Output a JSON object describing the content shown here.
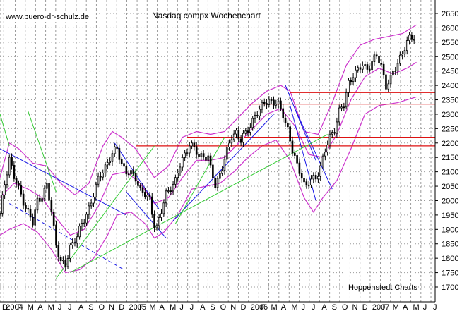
{
  "chart_data": {
    "type": "candlestick",
    "title": "Nasdaq compx Wochenchart",
    "watermark": "www.buero-dr-schulz.de",
    "credit": "Hoppenstedt Charts",
    "ylim": [
      1700,
      2650
    ],
    "y_ticks": [
      1700,
      1750,
      1800,
      1850,
      1900,
      1950,
      2000,
      2050,
      2100,
      2150,
      2200,
      2250,
      2300,
      2350,
      2400,
      2450,
      2500,
      2550,
      2600,
      2650
    ],
    "x_labels": [
      {
        "label": "D",
        "i": 0
      },
      {
        "label": "2004",
        "i": 1.6
      },
      {
        "label": "F",
        "i": 6.5
      },
      {
        "label": "M",
        "i": 10.8
      },
      {
        "label": "A",
        "i": 15.2
      },
      {
        "label": "M",
        "i": 19.5
      },
      {
        "label": "J",
        "i": 23.8
      },
      {
        "label": "J",
        "i": 28.1
      },
      {
        "label": "A",
        "i": 32.6
      },
      {
        "label": "S",
        "i": 36.9
      },
      {
        "label": "O",
        "i": 41.2
      },
      {
        "label": "N",
        "i": 45.6
      },
      {
        "label": "D",
        "i": 49.9
      },
      {
        "label": "2005",
        "i": 54.2
      },
      {
        "label": "F",
        "i": 58.6
      },
      {
        "label": "M",
        "i": 62.9
      },
      {
        "label": "A",
        "i": 67.2
      },
      {
        "label": "M",
        "i": 71.6
      },
      {
        "label": "J",
        "i": 75.9
      },
      {
        "label": "J",
        "i": 80.2
      },
      {
        "label": "A",
        "i": 84.6
      },
      {
        "label": "S",
        "i": 88.9
      },
      {
        "label": "O",
        "i": 93.2
      },
      {
        "label": "N",
        "i": 97.6
      },
      {
        "label": "D",
        "i": 101.9
      },
      {
        "label": "2006",
        "i": 106.2
      },
      {
        "label": "F",
        "i": 110.6
      },
      {
        "label": "M",
        "i": 114.9
      },
      {
        "label": "A",
        "i": 119.2
      },
      {
        "label": "M",
        "i": 123.6
      },
      {
        "label": "J",
        "i": 127.9
      },
      {
        "label": "J",
        "i": 132.2
      },
      {
        "label": "A",
        "i": 136.6
      },
      {
        "label": "S",
        "i": 140.9
      },
      {
        "label": "O",
        "i": 145.2
      },
      {
        "label": "N",
        "i": 149.6
      },
      {
        "label": "D",
        "i": 153.9
      },
      {
        "label": "2007",
        "i": 158.2
      },
      {
        "label": "F",
        "i": 162.6
      },
      {
        "label": "M",
        "i": 166.9
      },
      {
        "label": "A",
        "i": 171.2
      },
      {
        "label": "M",
        "i": 175.6
      },
      {
        "label": "J",
        "i": 179.9
      },
      {
        "label": "J",
        "i": 184.2
      }
    ],
    "x_extent": [
      0,
      186
    ],
    "close_anchors": [
      [
        0,
        1950
      ],
      [
        2,
        2060
      ],
      [
        4,
        2150
      ],
      [
        6,
        2080
      ],
      [
        8,
        2040
      ],
      [
        10,
        2000
      ],
      [
        12,
        1960
      ],
      [
        14,
        1920
      ],
      [
        16,
        2000
      ],
      [
        18,
        2020
      ],
      [
        20,
        2050
      ],
      [
        22,
        1960
      ],
      [
        24,
        1850
      ],
      [
        26,
        1790
      ],
      [
        28,
        1770
      ],
      [
        30,
        1840
      ],
      [
        33,
        1880
      ],
      [
        36,
        1930
      ],
      [
        39,
        2000
      ],
      [
        42,
        2070
      ],
      [
        45,
        2120
      ],
      [
        48,
        2160
      ],
      [
        50,
        2180
      ],
      [
        52,
        2130
      ],
      [
        54,
        2100
      ],
      [
        56,
        2090
      ],
      [
        58,
        2080
      ],
      [
        60,
        2040
      ],
      [
        62,
        2020
      ],
      [
        64,
        2000
      ],
      [
        66,
        1920
      ],
      [
        67,
        1910
      ],
      [
        69,
        1960
      ],
      [
        71,
        2020
      ],
      [
        73,
        2050
      ],
      [
        75,
        2070
      ],
      [
        77,
        2120
      ],
      [
        79,
        2160
      ],
      [
        81,
        2200
      ],
      [
        83,
        2180
      ],
      [
        85,
        2150
      ],
      [
        87,
        2160
      ],
      [
        89,
        2150
      ],
      [
        90,
        2110
      ],
      [
        92,
        2050
      ],
      [
        93,
        2070
      ],
      [
        95,
        2120
      ],
      [
        97,
        2170
      ],
      [
        99,
        2220
      ],
      [
        101,
        2240
      ],
      [
        103,
        2210
      ],
      [
        105,
        2230
      ],
      [
        107,
        2260
      ],
      [
        109,
        2300
      ],
      [
        111,
        2310
      ],
      [
        113,
        2340
      ],
      [
        115,
        2350
      ],
      [
        117,
        2340
      ],
      [
        119,
        2330
      ],
      [
        121,
        2300
      ],
      [
        123,
        2250
      ],
      [
        125,
        2170
      ],
      [
        127,
        2120
      ],
      [
        129,
        2090
      ],
      [
        130,
        2060
      ],
      [
        131,
        2050
      ],
      [
        133,
        2070
      ],
      [
        135,
        2080
      ],
      [
        137,
        2120
      ],
      [
        139,
        2170
      ],
      [
        141,
        2220
      ],
      [
        143,
        2250
      ],
      [
        145,
        2310
      ],
      [
        147,
        2330
      ],
      [
        149,
        2410
      ],
      [
        151,
        2440
      ],
      [
        153,
        2450
      ],
      [
        155,
        2470
      ],
      [
        157,
        2460
      ],
      [
        159,
        2480
      ],
      [
        161,
        2500
      ],
      [
        163,
        2470
      ],
      [
        165,
        2400
      ],
      [
        167,
        2420
      ],
      [
        169,
        2460
      ],
      [
        171,
        2500
      ],
      [
        173,
        2530
      ],
      [
        175,
        2560
      ],
      [
        177,
        2570
      ]
    ],
    "bands": {
      "upper": [
        [
          0,
          2080
        ],
        [
          4,
          2200
        ],
        [
          8,
          2180
        ],
        [
          14,
          2130
        ],
        [
          20,
          2120
        ],
        [
          26,
          2060
        ],
        [
          32,
          2020
        ],
        [
          38,
          2060
        ],
        [
          44,
          2190
        ],
        [
          48,
          2240
        ],
        [
          52,
          2220
        ],
        [
          58,
          2180
        ],
        [
          66,
          2080
        ],
        [
          72,
          2120
        ],
        [
          78,
          2220
        ],
        [
          84,
          2240
        ],
        [
          90,
          2230
        ],
        [
          96,
          2240
        ],
        [
          102,
          2290
        ],
        [
          108,
          2340
        ],
        [
          114,
          2380
        ],
        [
          120,
          2400
        ],
        [
          124,
          2380
        ],
        [
          130,
          2240
        ],
        [
          136,
          2230
        ],
        [
          142,
          2340
        ],
        [
          148,
          2470
        ],
        [
          154,
          2540
        ],
        [
          160,
          2560
        ],
        [
          166,
          2570
        ],
        [
          172,
          2580
        ],
        [
          178,
          2610
        ]
      ],
      "middle": [
        [
          0,
          2010
        ],
        [
          6,
          2060
        ],
        [
          12,
          2040
        ],
        [
          18,
          2010
        ],
        [
          24,
          1940
        ],
        [
          30,
          1880
        ],
        [
          36,
          1900
        ],
        [
          42,
          1980
        ],
        [
          48,
          2090
        ],
        [
          54,
          2100
        ],
        [
          60,
          2060
        ],
        [
          66,
          1990
        ],
        [
          72,
          2010
        ],
        [
          78,
          2080
        ],
        [
          84,
          2140
        ],
        [
          90,
          2140
        ],
        [
          96,
          2150
        ],
        [
          102,
          2200
        ],
        [
          108,
          2250
        ],
        [
          114,
          2300
        ],
        [
          120,
          2320
        ],
        [
          126,
          2260
        ],
        [
          132,
          2160
        ],
        [
          138,
          2150
        ],
        [
          144,
          2230
        ],
        [
          150,
          2350
        ],
        [
          156,
          2430
        ],
        [
          162,
          2460
        ],
        [
          168,
          2440
        ],
        [
          174,
          2460
        ],
        [
          178,
          2480
        ]
      ],
      "lower": [
        [
          0,
          1880
        ],
        [
          4,
          1900
        ],
        [
          10,
          1920
        ],
        [
          16,
          1890
        ],
        [
          22,
          1830
        ],
        [
          28,
          1750
        ],
        [
          34,
          1760
        ],
        [
          40,
          1800
        ],
        [
          46,
          1880
        ],
        [
          50,
          1950
        ],
        [
          56,
          1960
        ],
        [
          62,
          1920
        ],
        [
          66,
          1870
        ],
        [
          70,
          1890
        ],
        [
          76,
          1950
        ],
        [
          82,
          2040
        ],
        [
          88,
          2050
        ],
        [
          94,
          2060
        ],
        [
          100,
          2100
        ],
        [
          106,
          2150
        ],
        [
          112,
          2190
        ],
        [
          118,
          2210
        ],
        [
          124,
          2140
        ],
        [
          130,
          2010
        ],
        [
          134,
          1960
        ],
        [
          138,
          2010
        ],
        [
          144,
          2070
        ],
        [
          150,
          2180
        ],
        [
          156,
          2300
        ],
        [
          162,
          2330
        ],
        [
          170,
          2340
        ],
        [
          178,
          2360
        ]
      ]
    },
    "trend_lines": [
      {
        "color": "#1a1ae6",
        "dash": false,
        "from": [
          0,
          2180
        ],
        "to": [
          54,
          1950
        ]
      },
      {
        "color": "#1a1ae6",
        "dash": true,
        "from": [
          4,
          1990
        ],
        "to": [
          53,
          1760
        ]
      },
      {
        "color": "#1a1ae6",
        "dash": false,
        "from": [
          49,
          2200
        ],
        "to": [
          68,
          1970
        ]
      },
      {
        "color": "#1a1ae6",
        "dash": false,
        "from": [
          54,
          2030
        ],
        "to": [
          71,
          1870
        ]
      },
      {
        "color": "#1a1ae6",
        "dash": false,
        "from": [
          74,
          1930
        ],
        "to": [
          117,
          2300
        ]
      },
      {
        "color": "#1a1ae6",
        "dash": false,
        "from": [
          122,
          2400
        ],
        "to": [
          135,
          2140
        ]
      },
      {
        "color": "#1a1ae6",
        "dash": false,
        "from": [
          124,
          2330
        ],
        "to": [
          135,
          2000
        ]
      },
      {
        "color": "#1a1ae6",
        "dash": false,
        "from": [
          126,
          2320
        ],
        "to": [
          142,
          2040
        ]
      },
      {
        "color": "#33cc33",
        "dash": false,
        "from": [
          0,
          2300
        ],
        "to": [
          4,
          2190
        ]
      },
      {
        "color": "#33cc33",
        "dash": false,
        "from": [
          12,
          2310
        ],
        "to": [
          24,
          2030
        ]
      },
      {
        "color": "#33cc33",
        "dash": false,
        "from": [
          24,
          1730
        ],
        "to": [
          66,
          2190
        ]
      },
      {
        "color": "#33cc33",
        "dash": false,
        "from": [
          30,
          1750
        ],
        "to": [
          140,
          2230
        ]
      },
      {
        "color": "#33cc33",
        "dash": false,
        "from": [
          75,
          1920
        ],
        "to": [
          96,
          2220
        ]
      }
    ],
    "levels": [
      {
        "color": "#dd1111",
        "y": 2375,
        "from": 124,
        "to": 186
      },
      {
        "color": "#dd1111",
        "y": 2335,
        "from": 106,
        "to": 186
      },
      {
        "color": "#dd1111",
        "y": 2220,
        "from": 80,
        "to": 186
      },
      {
        "color": "#dd1111",
        "y": 2190,
        "from": 58,
        "to": 186
      }
    ],
    "colors": {
      "candle": "#000000",
      "band": "#cc33cc",
      "level": "#dd1111",
      "trend_blue": "#1a1ae6",
      "trend_green": "#33cc33",
      "grid": "#9b9b9b"
    }
  }
}
